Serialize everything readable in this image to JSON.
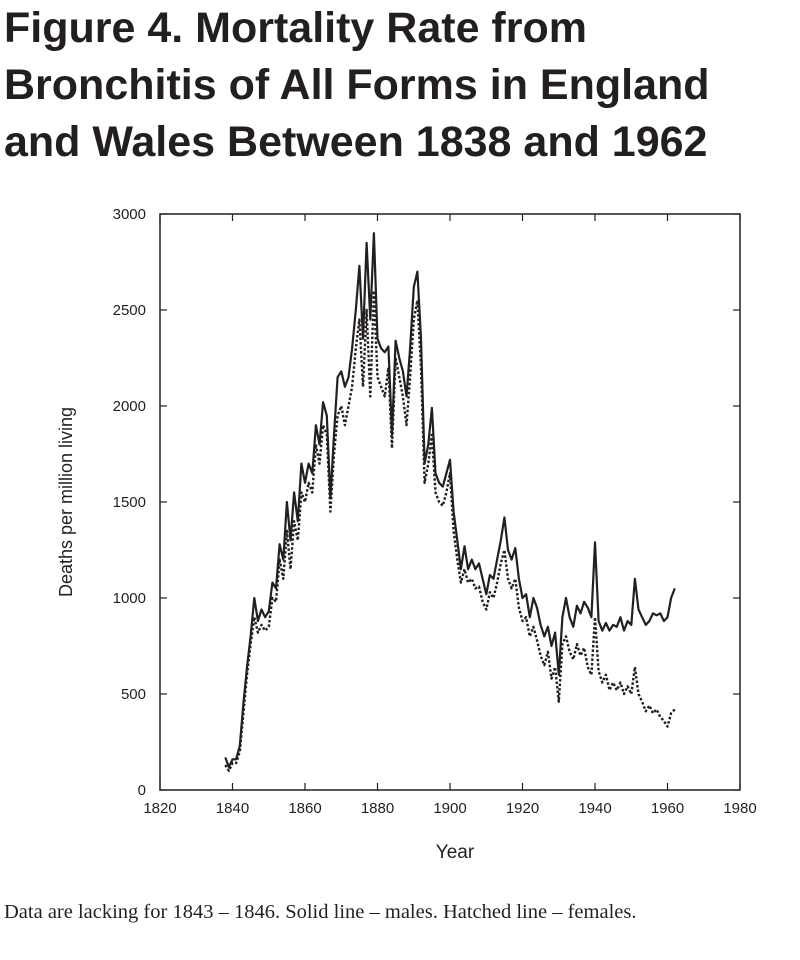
{
  "title": {
    "lines": [
      "Figure 4. Mortality Rate from",
      "Bronchitis of All Forms in England",
      "and Wales Between 1838 and 1962"
    ]
  },
  "caption": "Data are lacking for 1843 – 1846. Solid line – males. Hatched line – females.",
  "chart_data": {
    "type": "line",
    "xlabel": "Year",
    "ylabel": "Deaths per million living",
    "xlim": [
      1820,
      1980
    ],
    "ylim": [
      0,
      3000
    ],
    "xticks": [
      1820,
      1840,
      1860,
      1880,
      1900,
      1920,
      1940,
      1960,
      1980
    ],
    "yticks": [
      0,
      500,
      1000,
      1500,
      2000,
      2500,
      3000
    ],
    "grid": false,
    "legend": "none",
    "series": [
      {
        "style": "solid",
        "color": "#231f20",
        "points": [
          [
            1838,
            170
          ],
          [
            1839,
            120
          ],
          [
            1840,
            160
          ],
          [
            1841,
            160
          ],
          [
            1842,
            230
          ],
          [
            1843,
            450
          ],
          [
            1844,
            640
          ],
          [
            1845,
            800
          ],
          [
            1846,
            1000
          ],
          [
            1847,
            880
          ],
          [
            1848,
            940
          ],
          [
            1849,
            900
          ],
          [
            1850,
            930
          ],
          [
            1851,
            1080
          ],
          [
            1852,
            1050
          ],
          [
            1853,
            1280
          ],
          [
            1854,
            1200
          ],
          [
            1855,
            1500
          ],
          [
            1856,
            1300
          ],
          [
            1857,
            1550
          ],
          [
            1858,
            1400
          ],
          [
            1859,
            1700
          ],
          [
            1860,
            1600
          ],
          [
            1861,
            1700
          ],
          [
            1862,
            1650
          ],
          [
            1863,
            1900
          ],
          [
            1864,
            1800
          ],
          [
            1865,
            2020
          ],
          [
            1866,
            1950
          ],
          [
            1867,
            1520
          ],
          [
            1868,
            1850
          ],
          [
            1869,
            2150
          ],
          [
            1870,
            2180
          ],
          [
            1871,
            2100
          ],
          [
            1872,
            2150
          ],
          [
            1873,
            2300
          ],
          [
            1874,
            2500
          ],
          [
            1875,
            2730
          ],
          [
            1876,
            2350
          ],
          [
            1877,
            2850
          ],
          [
            1878,
            2450
          ],
          [
            1879,
            2900
          ],
          [
            1880,
            2350
          ],
          [
            1881,
            2300
          ],
          [
            1882,
            2280
          ],
          [
            1883,
            2310
          ],
          [
            1884,
            1850
          ],
          [
            1885,
            2340
          ],
          [
            1886,
            2250
          ],
          [
            1887,
            2180
          ],
          [
            1888,
            2050
          ],
          [
            1889,
            2300
          ],
          [
            1890,
            2620
          ],
          [
            1891,
            2700
          ],
          [
            1892,
            2350
          ],
          [
            1893,
            1700
          ],
          [
            1894,
            1800
          ],
          [
            1895,
            1990
          ],
          [
            1896,
            1650
          ],
          [
            1897,
            1600
          ],
          [
            1898,
            1580
          ],
          [
            1899,
            1650
          ],
          [
            1900,
            1720
          ],
          [
            1901,
            1450
          ],
          [
            1902,
            1300
          ],
          [
            1903,
            1150
          ],
          [
            1904,
            1270
          ],
          [
            1905,
            1150
          ],
          [
            1906,
            1200
          ],
          [
            1907,
            1150
          ],
          [
            1908,
            1180
          ],
          [
            1909,
            1100
          ],
          [
            1910,
            1020
          ],
          [
            1911,
            1120
          ],
          [
            1912,
            1100
          ],
          [
            1913,
            1200
          ],
          [
            1914,
            1300
          ],
          [
            1915,
            1420
          ],
          [
            1916,
            1250
          ],
          [
            1917,
            1200
          ],
          [
            1918,
            1260
          ],
          [
            1919,
            1100
          ],
          [
            1920,
            1000
          ],
          [
            1921,
            1020
          ],
          [
            1922,
            900
          ],
          [
            1923,
            1000
          ],
          [
            1924,
            950
          ],
          [
            1925,
            860
          ],
          [
            1926,
            800
          ],
          [
            1927,
            850
          ],
          [
            1928,
            750
          ],
          [
            1929,
            820
          ],
          [
            1930,
            600
          ],
          [
            1931,
            900
          ],
          [
            1932,
            1000
          ],
          [
            1933,
            900
          ],
          [
            1934,
            850
          ],
          [
            1935,
            960
          ],
          [
            1936,
            920
          ],
          [
            1937,
            980
          ],
          [
            1938,
            950
          ],
          [
            1939,
            900
          ],
          [
            1940,
            1290
          ],
          [
            1941,
            880
          ],
          [
            1942,
            830
          ],
          [
            1943,
            870
          ],
          [
            1944,
            830
          ],
          [
            1945,
            860
          ],
          [
            1946,
            850
          ],
          [
            1947,
            900
          ],
          [
            1948,
            830
          ],
          [
            1949,
            880
          ],
          [
            1950,
            860
          ],
          [
            1951,
            1100
          ],
          [
            1952,
            940
          ],
          [
            1953,
            900
          ],
          [
            1954,
            860
          ],
          [
            1955,
            880
          ],
          [
            1956,
            920
          ],
          [
            1957,
            910
          ],
          [
            1958,
            920
          ],
          [
            1959,
            880
          ],
          [
            1960,
            900
          ],
          [
            1961,
            1000
          ],
          [
            1962,
            1050
          ]
        ]
      },
      {
        "style": "dotted",
        "color": "#231f20",
        "points": [
          [
            1838,
            130
          ],
          [
            1839,
            100
          ],
          [
            1840,
            140
          ],
          [
            1841,
            140
          ],
          [
            1842,
            200
          ],
          [
            1843,
            400
          ],
          [
            1844,
            600
          ],
          [
            1845,
            760
          ],
          [
            1846,
            900
          ],
          [
            1847,
            820
          ],
          [
            1848,
            860
          ],
          [
            1849,
            830
          ],
          [
            1850,
            850
          ],
          [
            1851,
            1000
          ],
          [
            1852,
            980
          ],
          [
            1853,
            1200
          ],
          [
            1854,
            1100
          ],
          [
            1855,
            1350
          ],
          [
            1856,
            1150
          ],
          [
            1857,
            1400
          ],
          [
            1858,
            1300
          ],
          [
            1859,
            1550
          ],
          [
            1860,
            1500
          ],
          [
            1861,
            1600
          ],
          [
            1862,
            1550
          ],
          [
            1863,
            1800
          ],
          [
            1864,
            1700
          ],
          [
            1865,
            1900
          ],
          [
            1866,
            1850
          ],
          [
            1867,
            1450
          ],
          [
            1868,
            1750
          ],
          [
            1869,
            1950
          ],
          [
            1870,
            2000
          ],
          [
            1871,
            1900
          ],
          [
            1872,
            2000
          ],
          [
            1873,
            2100
          ],
          [
            1874,
            2300
          ],
          [
            1875,
            2450
          ],
          [
            1876,
            2100
          ],
          [
            1877,
            2500
          ],
          [
            1878,
            2050
          ],
          [
            1879,
            2600
          ],
          [
            1880,
            2150
          ],
          [
            1881,
            2100
          ],
          [
            1882,
            2050
          ],
          [
            1883,
            2200
          ],
          [
            1884,
            1780
          ],
          [
            1885,
            2250
          ],
          [
            1886,
            2150
          ],
          [
            1887,
            2050
          ],
          [
            1888,
            1900
          ],
          [
            1889,
            2150
          ],
          [
            1890,
            2450
          ],
          [
            1891,
            2550
          ],
          [
            1892,
            2200
          ],
          [
            1893,
            1600
          ],
          [
            1894,
            1700
          ],
          [
            1895,
            1850
          ],
          [
            1896,
            1550
          ],
          [
            1897,
            1500
          ],
          [
            1898,
            1480
          ],
          [
            1899,
            1550
          ],
          [
            1900,
            1650
          ],
          [
            1901,
            1350
          ],
          [
            1902,
            1200
          ],
          [
            1903,
            1080
          ],
          [
            1904,
            1150
          ],
          [
            1905,
            1080
          ],
          [
            1906,
            1100
          ],
          [
            1907,
            1050
          ],
          [
            1908,
            1060
          ],
          [
            1909,
            980
          ],
          [
            1910,
            940
          ],
          [
            1911,
            1030
          ],
          [
            1912,
            1000
          ],
          [
            1913,
            1080
          ],
          [
            1914,
            1180
          ],
          [
            1915,
            1250
          ],
          [
            1916,
            1100
          ],
          [
            1917,
            1050
          ],
          [
            1918,
            1100
          ],
          [
            1919,
            950
          ],
          [
            1920,
            880
          ],
          [
            1921,
            900
          ],
          [
            1922,
            800
          ],
          [
            1923,
            850
          ],
          [
            1924,
            780
          ],
          [
            1925,
            700
          ],
          [
            1926,
            650
          ],
          [
            1927,
            720
          ],
          [
            1928,
            580
          ],
          [
            1929,
            640
          ],
          [
            1930,
            460
          ],
          [
            1931,
            760
          ],
          [
            1932,
            800
          ],
          [
            1933,
            720
          ],
          [
            1934,
            680
          ],
          [
            1935,
            760
          ],
          [
            1936,
            700
          ],
          [
            1937,
            740
          ],
          [
            1938,
            640
          ],
          [
            1939,
            600
          ],
          [
            1940,
            900
          ],
          [
            1941,
            620
          ],
          [
            1942,
            560
          ],
          [
            1943,
            600
          ],
          [
            1944,
            520
          ],
          [
            1945,
            560
          ],
          [
            1946,
            520
          ],
          [
            1947,
            560
          ],
          [
            1948,
            500
          ],
          [
            1949,
            540
          ],
          [
            1950,
            500
          ],
          [
            1951,
            640
          ],
          [
            1952,
            500
          ],
          [
            1953,
            460
          ],
          [
            1954,
            410
          ],
          [
            1955,
            440
          ],
          [
            1956,
            400
          ],
          [
            1957,
            420
          ],
          [
            1958,
            380
          ],
          [
            1959,
            360
          ],
          [
            1960,
            330
          ],
          [
            1961,
            400
          ],
          [
            1962,
            420
          ]
        ]
      }
    ]
  }
}
